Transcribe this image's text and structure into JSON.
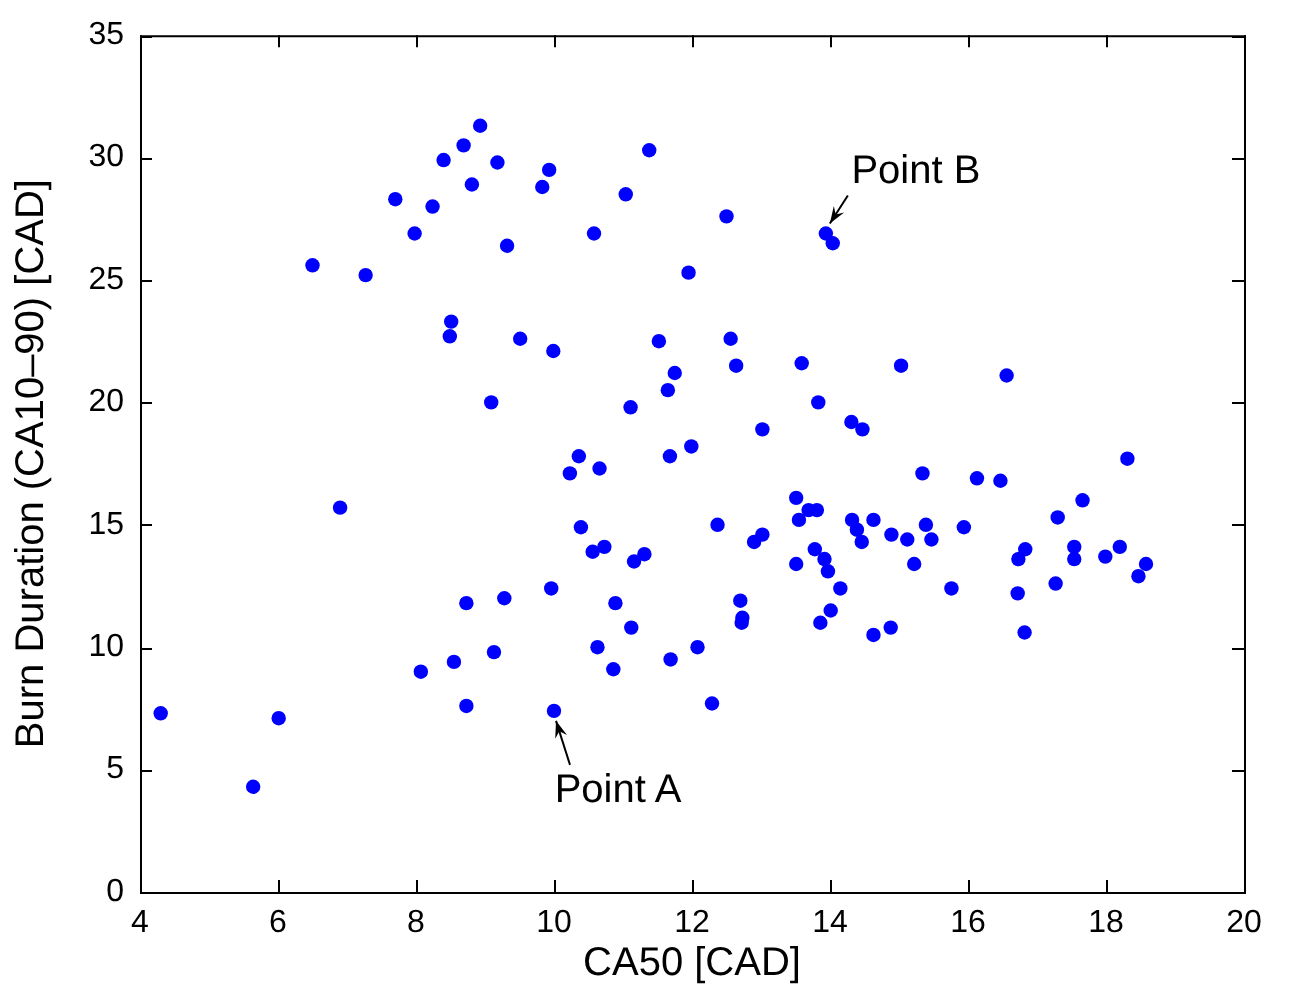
{
  "chart_data": {
    "type": "scatter",
    "xlabel": "CA50 [CAD]",
    "ylabel": "Burn Duration (CA10–90) [CAD]",
    "xlim": [
      4,
      20
    ],
    "xticks": [
      4,
      6,
      8,
      10,
      12,
      14,
      16,
      18,
      20
    ],
    "ylim": [
      0,
      35
    ],
    "yticks": [
      0,
      5,
      10,
      15,
      20,
      25,
      30,
      35
    ],
    "grid": false,
    "legend": false,
    "marker": "circle",
    "annotations": [
      {
        "text": "Point A",
        "x": 10.0,
        "y": 7.4
      },
      {
        "text": "Point B",
        "x": 13.94,
        "y": 26.9
      }
    ],
    "series": [
      {
        "color": "#0000ff",
        "x": [
          4.3,
          5.64,
          6.01,
          6.9,
          6.5,
          7.27,
          7.7,
          7.98,
          8.24,
          8.4,
          8.69,
          8.93,
          8.81,
          9.18,
          9.32,
          9.83,
          9.93,
          10.58,
          11.04,
          11.38,
          11.95,
          8.51,
          8.49,
          9.51,
          9.99,
          9.09,
          11.11,
          11.52,
          11.75,
          11.65,
          10.36,
          10.23,
          10.66,
          11.68,
          11.99,
          12.5,
          13.94,
          14.04,
          12.56,
          12.64,
          13.59,
          15.03,
          16.56,
          13.83,
          14.31,
          14.47,
          13.02,
          15.34,
          16.13,
          16.47,
          18.31,
          10.39,
          10.56,
          10.73,
          11.16,
          11.31,
          8.73,
          9.28,
          9.96,
          10.89,
          11.12,
          8.07,
          8.55,
          9.13,
          10.63,
          10.86,
          11.69,
          12.08,
          8.73,
          10.0,
          13.51,
          13.55,
          13.69,
          13.81,
          12.37,
          12.9,
          13.02,
          13.51,
          13.78,
          13.92,
          13.97,
          14.32,
          14.39,
          14.46,
          14.63,
          14.89,
          15.12,
          15.22,
          15.39,
          15.47,
          15.94,
          14.15,
          12.7,
          12.73,
          12.72,
          14.01,
          13.86,
          14.63,
          14.88,
          15.76,
          16.73,
          16.83,
          16.72,
          16.82,
          17.3,
          17.66,
          17.27,
          17.54,
          17.54,
          17.99,
          18.2,
          18.58,
          18.47,
          12.29
        ],
        "values": [
          7.3,
          4.3,
          7.1,
          15.7,
          25.6,
          25.2,
          28.3,
          26.9,
          28.0,
          29.9,
          30.5,
          31.3,
          28.9,
          29.8,
          26.4,
          28.8,
          29.5,
          26.9,
          28.5,
          30.3,
          25.3,
          23.3,
          22.7,
          22.6,
          22.1,
          20.0,
          19.8,
          22.5,
          21.2,
          20.5,
          17.8,
          17.1,
          17.3,
          17.8,
          18.2,
          27.6,
          26.9,
          26.5,
          22.6,
          21.5,
          21.6,
          21.5,
          21.1,
          20.0,
          19.2,
          18.9,
          18.9,
          17.1,
          16.9,
          16.8,
          17.7,
          14.9,
          13.9,
          14.1,
          13.5,
          13.8,
          11.8,
          12.0,
          12.4,
          11.8,
          10.8,
          9.0,
          9.4,
          9.8,
          10.0,
          9.1,
          9.5,
          10.0,
          7.6,
          7.4,
          16.1,
          15.2,
          15.6,
          15.6,
          15.0,
          14.3,
          14.6,
          13.4,
          14.0,
          13.6,
          13.1,
          15.2,
          14.8,
          14.3,
          15.2,
          14.6,
          14.4,
          13.4,
          15.0,
          14.4,
          14.9,
          12.4,
          11.9,
          11.2,
          11.0,
          11.5,
          11.0,
          10.5,
          10.8,
          12.4,
          13.6,
          14.0,
          12.2,
          10.6,
          15.3,
          16.0,
          12.6,
          14.1,
          13.6,
          13.7,
          14.1,
          13.4,
          12.9,
          7.7
        ]
      }
    ]
  }
}
